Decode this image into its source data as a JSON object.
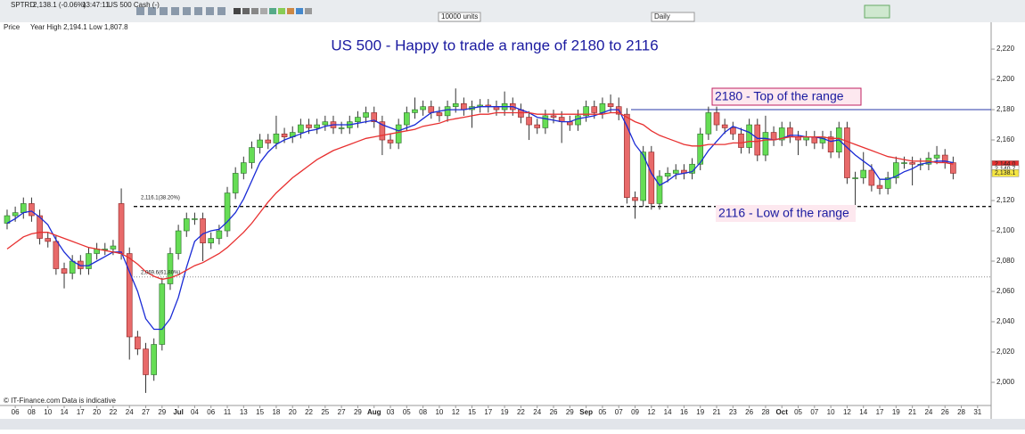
{
  "header": {
    "symbol": "SPTRD",
    "quote": "2,138.1 (-0.06%)",
    "time": "13:47:11",
    "instrument": "US 500 Cash (-)",
    "units": "10000 units",
    "interval": "Daily",
    "price_label": "Price",
    "range_info": "Year High 2,194.1 Low 1,807.8"
  },
  "footer": "© IT-Finance.com  Data is indicative",
  "chart_data": {
    "type": "candlestick",
    "title": "US 500 - Happy to trade a range of 2180 to 2116",
    "annotations": {
      "top": "2180 - Top of the range",
      "low": "2116 - Low of the range",
      "fib1": "2,116.1(38.20%)",
      "fib2": "2,069.6(61.80%)"
    },
    "categories": [
      null,
      "06",
      null,
      "08",
      null,
      "10",
      null,
      "14",
      null,
      "17",
      null,
      "20",
      null,
      "22",
      null,
      "24",
      null,
      "27",
      null,
      "29",
      null,
      "Jul",
      null,
      "04",
      null,
      "06",
      null,
      "11",
      null,
      "13",
      null,
      "15",
      null,
      "18",
      null,
      "20",
      null,
      "22",
      null,
      "25",
      null,
      "27",
      null,
      "29",
      null,
      "Aug",
      null,
      "03",
      null,
      "05",
      null,
      "08",
      null,
      "10",
      null,
      "12",
      null,
      "15",
      null,
      "17",
      null,
      "19",
      null,
      "22",
      null,
      "24",
      null,
      "26",
      null,
      "29",
      null,
      "Sep",
      null,
      "05",
      null,
      "07",
      null,
      "09",
      null,
      "12",
      null,
      "14",
      null,
      "16",
      null,
      "19",
      null,
      "21",
      null,
      "23",
      null,
      "26",
      null,
      "28",
      null,
      "Oct",
      null,
      "05",
      null,
      "07",
      null,
      "10",
      null,
      "12",
      null,
      "14",
      null,
      "17",
      null,
      "19",
      null,
      "21",
      null,
      "24",
      null,
      "26",
      null,
      "28",
      null,
      "31"
    ],
    "open": [
      2105,
      2110,
      2112,
      2118,
      2110,
      2095,
      2093,
      2075,
      2072,
      2080,
      2075,
      2085,
      2088,
      2088,
      2118,
      2085,
      2030,
      2022,
      2005,
      2025,
      2065,
      2085,
      2100,
      2108,
      2108,
      2092,
      2095,
      2100,
      2125,
      2138,
      2145,
      2155,
      2160,
      2158,
      2164,
      2162,
      2165,
      2170,
      2168,
      2170,
      2172,
      2168,
      2168,
      2172,
      2175,
      2178,
      2172,
      2160,
      2158,
      2170,
      2178,
      2180,
      2182,
      2178,
      2176,
      2182,
      2184,
      2180,
      2182,
      2183,
      2182,
      2180,
      2184,
      2180,
      2175,
      2170,
      2168,
      2176,
      2175,
      2172,
      2170,
      2176,
      2182,
      2178,
      2184,
      2182,
      2177,
      2122,
      2120,
      2152,
      2118,
      2136,
      2138,
      2140,
      2138,
      2144,
      2164,
      2178,
      2170,
      2168,
      2164,
      2155,
      2170,
      2150,
      2165,
      2160,
      2168,
      2162,
      2160,
      2162,
      2158,
      2162,
      2152,
      2168,
      2135,
      2135,
      2140,
      2130,
      2128,
      2135,
      2145,
      2145,
      2144,
      2144,
      2148,
      2150,
      2145,
      null,
      null,
      null
    ],
    "high": [
      2114,
      2116,
      2122,
      2122,
      2114,
      2099,
      2097,
      2079,
      2084,
      2084,
      2089,
      2092,
      2092,
      2094,
      2128,
      2089,
      2034,
      2026,
      2029,
      2069,
      2089,
      2104,
      2112,
      2112,
      2112,
      2099,
      2104,
      2129,
      2142,
      2149,
      2159,
      2164,
      2164,
      2176,
      2168,
      2169,
      2174,
      2174,
      2174,
      2176,
      2176,
      2172,
      2176,
      2179,
      2182,
      2182,
      2176,
      2164,
      2174,
      2182,
      2188,
      2186,
      2186,
      2182,
      2186,
      2194,
      2188,
      2186,
      2187,
      2187,
      2186,
      2192,
      2188,
      2184,
      2179,
      2174,
      2180,
      2180,
      2179,
      2176,
      2180,
      2186,
      2186,
      2188,
      2190,
      2188,
      2181,
      2126,
      2156,
      2156,
      2140,
      2142,
      2144,
      2144,
      2148,
      2168,
      2182,
      2182,
      2174,
      2172,
      2168,
      2174,
      2174,
      2176,
      2169,
      2172,
      2172,
      2166,
      2166,
      2166,
      2166,
      2166,
      2172,
      2172,
      2139,
      2152,
      2144,
      2134,
      2139,
      2149,
      2149,
      2149,
      2148,
      2152,
      2156,
      2154,
      2149,
      null,
      null,
      null
    ],
    "low": [
      2101,
      2106,
      2108,
      2106,
      2091,
      2089,
      2071,
      2062,
      2068,
      2071,
      2071,
      2081,
      2084,
      2084,
      2081,
      2015,
      2018,
      1993,
      2001,
      2021,
      2061,
      2081,
      2096,
      2104,
      2080,
      2088,
      2091,
      2096,
      2121,
      2134,
      2141,
      2151,
      2154,
      2154,
      2158,
      2158,
      2161,
      2164,
      2164,
      2166,
      2164,
      2164,
      2164,
      2168,
      2171,
      2168,
      2150,
      2154,
      2154,
      2166,
      2174,
      2176,
      2174,
      2172,
      2172,
      2178,
      2176,
      2168,
      2178,
      2178,
      2176,
      2176,
      2176,
      2171,
      2160,
      2164,
      2164,
      2171,
      2158,
      2166,
      2166,
      2172,
      2174,
      2174,
      2178,
      2173,
      2118,
      2108,
      2116,
      2114,
      2114,
      2132,
      2134,
      2134,
      2134,
      2140,
      2160,
      2166,
      2164,
      2160,
      2151,
      2151,
      2146,
      2146,
      2156,
      2156,
      2158,
      2150,
      2156,
      2154,
      2154,
      2148,
      2148,
      2131,
      2114,
      2131,
      2126,
      2124,
      2124,
      2131,
      2141,
      2130,
      2140,
      2140,
      2144,
      2141,
      2134,
      null,
      null,
      null
    ],
    "close": [
      2110,
      2112,
      2118,
      2110,
      2095,
      2093,
      2075,
      2072,
      2080,
      2075,
      2085,
      2088,
      2088,
      2090,
      2085,
      2030,
      2022,
      2005,
      2025,
      2065,
      2085,
      2100,
      2108,
      2108,
      2092,
      2095,
      2100,
      2125,
      2138,
      2145,
      2155,
      2160,
      2158,
      2164,
      2162,
      2165,
      2170,
      2168,
      2170,
      2172,
      2168,
      2168,
      2172,
      2175,
      2178,
      2172,
      2160,
      2158,
      2170,
      2178,
      2180,
      2182,
      2178,
      2176,
      2182,
      2184,
      2180,
      2182,
      2183,
      2182,
      2180,
      2184,
      2180,
      2175,
      2170,
      2168,
      2176,
      2175,
      2172,
      2170,
      2176,
      2182,
      2178,
      2184,
      2182,
      2177,
      2122,
      2120,
      2152,
      2118,
      2136,
      2138,
      2140,
      2138,
      2144,
      2164,
      2178,
      2170,
      2168,
      2164,
      2155,
      2170,
      2150,
      2165,
      2160,
      2168,
      2162,
      2160,
      2162,
      2158,
      2162,
      2152,
      2168,
      2135,
      2135,
      2140,
      2130,
      2128,
      2135,
      2145,
      2145,
      2144,
      2144,
      2148,
      2150,
      2145,
      2138,
      null,
      null,
      null
    ],
    "up_color": "#66dd55",
    "down_color": "#e86a6a",
    "series": [
      {
        "color": "#1a2bd6",
        "values": [
          2105,
          2108,
          2112,
          2113,
          2109,
          2104,
          2094,
          2086,
          2080,
          2077,
          2077,
          2080,
          2083,
          2086,
          2086,
          2073,
          2060,
          2042,
          2035,
          2035,
          2042,
          2056,
          2076,
          2093,
          2098,
          2100,
          2101,
          2106,
          2112,
          2121,
          2133,
          2145,
          2152,
          2157,
          2160,
          2162,
          2164,
          2166,
          2167,
          2169,
          2170,
          2170,
          2170,
          2171,
          2172,
          2173,
          2170,
          2168,
          2166,
          2168,
          2170,
          2174,
          2178,
          2179,
          2180,
          2180,
          2180,
          2181,
          2182,
          2182,
          2182,
          2182,
          2182,
          2180,
          2178,
          2175,
          2174,
          2173,
          2172,
          2172,
          2174,
          2175,
          2176,
          2178,
          2180,
          2180,
          2169,
          2157,
          2150,
          2138,
          2130,
          2133,
          2137,
          2138,
          2139,
          2145,
          2153,
          2159,
          2165,
          2169,
          2167,
          2165,
          2161,
          2161,
          2160,
          2161,
          2163,
          2163,
          2162,
          2162,
          2161,
          2159,
          2160,
          2155,
          2150,
          2146,
          2142,
          2134,
          2134,
          2136,
          2139,
          2141,
          2144,
          2145,
          2146,
          2146,
          2145,
          null,
          null,
          null
        ]
      },
      {
        "color": "#e83030",
        "values": [
          2088,
          2092,
          2096,
          2098,
          2099,
          2099,
          2097,
          2095,
          2093,
          2091,
          2089,
          2088,
          2087,
          2086,
          2085,
          2082,
          2078,
          2073,
          2070,
          2068,
          2069,
          2071,
          2074,
          2077,
          2079,
          2082,
          2085,
          2089,
          2094,
          2099,
          2105,
          2112,
          2119,
          2125,
          2130,
          2135,
          2139,
          2143,
          2147,
          2150,
          2153,
          2155,
          2157,
          2159,
          2161,
          2162,
          2163,
          2164,
          2165,
          2166,
          2167,
          2169,
          2170,
          2171,
          2173,
          2174,
          2175,
          2176,
          2177,
          2177,
          2178,
          2178,
          2178,
          2178,
          2178,
          2177,
          2177,
          2177,
          2177,
          2177,
          2177,
          2177,
          2177,
          2177,
          2178,
          2178,
          2175,
          2172,
          2170,
          2166,
          2163,
          2161,
          2159,
          2157,
          2156,
          2156,
          2157,
          2157,
          2157,
          2158,
          2158,
          2159,
          2159,
          2160,
          2160,
          2161,
          2162,
          2162,
          2162,
          2162,
          2162,
          2161,
          2161,
          2159,
          2157,
          2155,
          2153,
          2151,
          2149,
          2148,
          2147,
          2146,
          2146,
          2146,
          2145,
          2145,
          2144,
          null,
          null,
          null
        ]
      }
    ],
    "hlines": [
      {
        "value": 2180,
        "color": "#2a3aa8",
        "style": "solid"
      },
      {
        "value": 2116.1,
        "color": "#111111",
        "style": "dashed"
      },
      {
        "value": 2069.6,
        "color": "#888888",
        "style": "dotted"
      }
    ],
    "price_labels": [
      {
        "value": 2144.0,
        "label": "2,144.0",
        "color": "#e83030"
      },
      {
        "value": 2140.7,
        "label": "2,140.7",
        "color": "#ffffff"
      },
      {
        "value": 2138.1,
        "label": "2,138.1",
        "color": "#f5e642"
      }
    ],
    "ylim": [
      1984.7,
      2237.1
    ],
    "yticks": [
      {
        "value": 2000,
        "label": "2,000"
      },
      {
        "value": 2020,
        "label": "2,020"
      },
      {
        "value": 2040,
        "label": "2,040"
      },
      {
        "value": 2060,
        "label": "2,060"
      },
      {
        "value": 2080,
        "label": "2,080"
      },
      {
        "value": 2100,
        "label": "2,100"
      },
      {
        "value": 2120,
        "label": "2,120"
      },
      {
        "value": 2140,
        "label": "2,140"
      },
      {
        "value": 2160,
        "label": "2,160"
      },
      {
        "value": 2180,
        "label": "2,180"
      },
      {
        "value": 2200,
        "label": "2,200"
      },
      {
        "value": 2220,
        "label": "2,220"
      }
    ],
    "grid": false
  }
}
